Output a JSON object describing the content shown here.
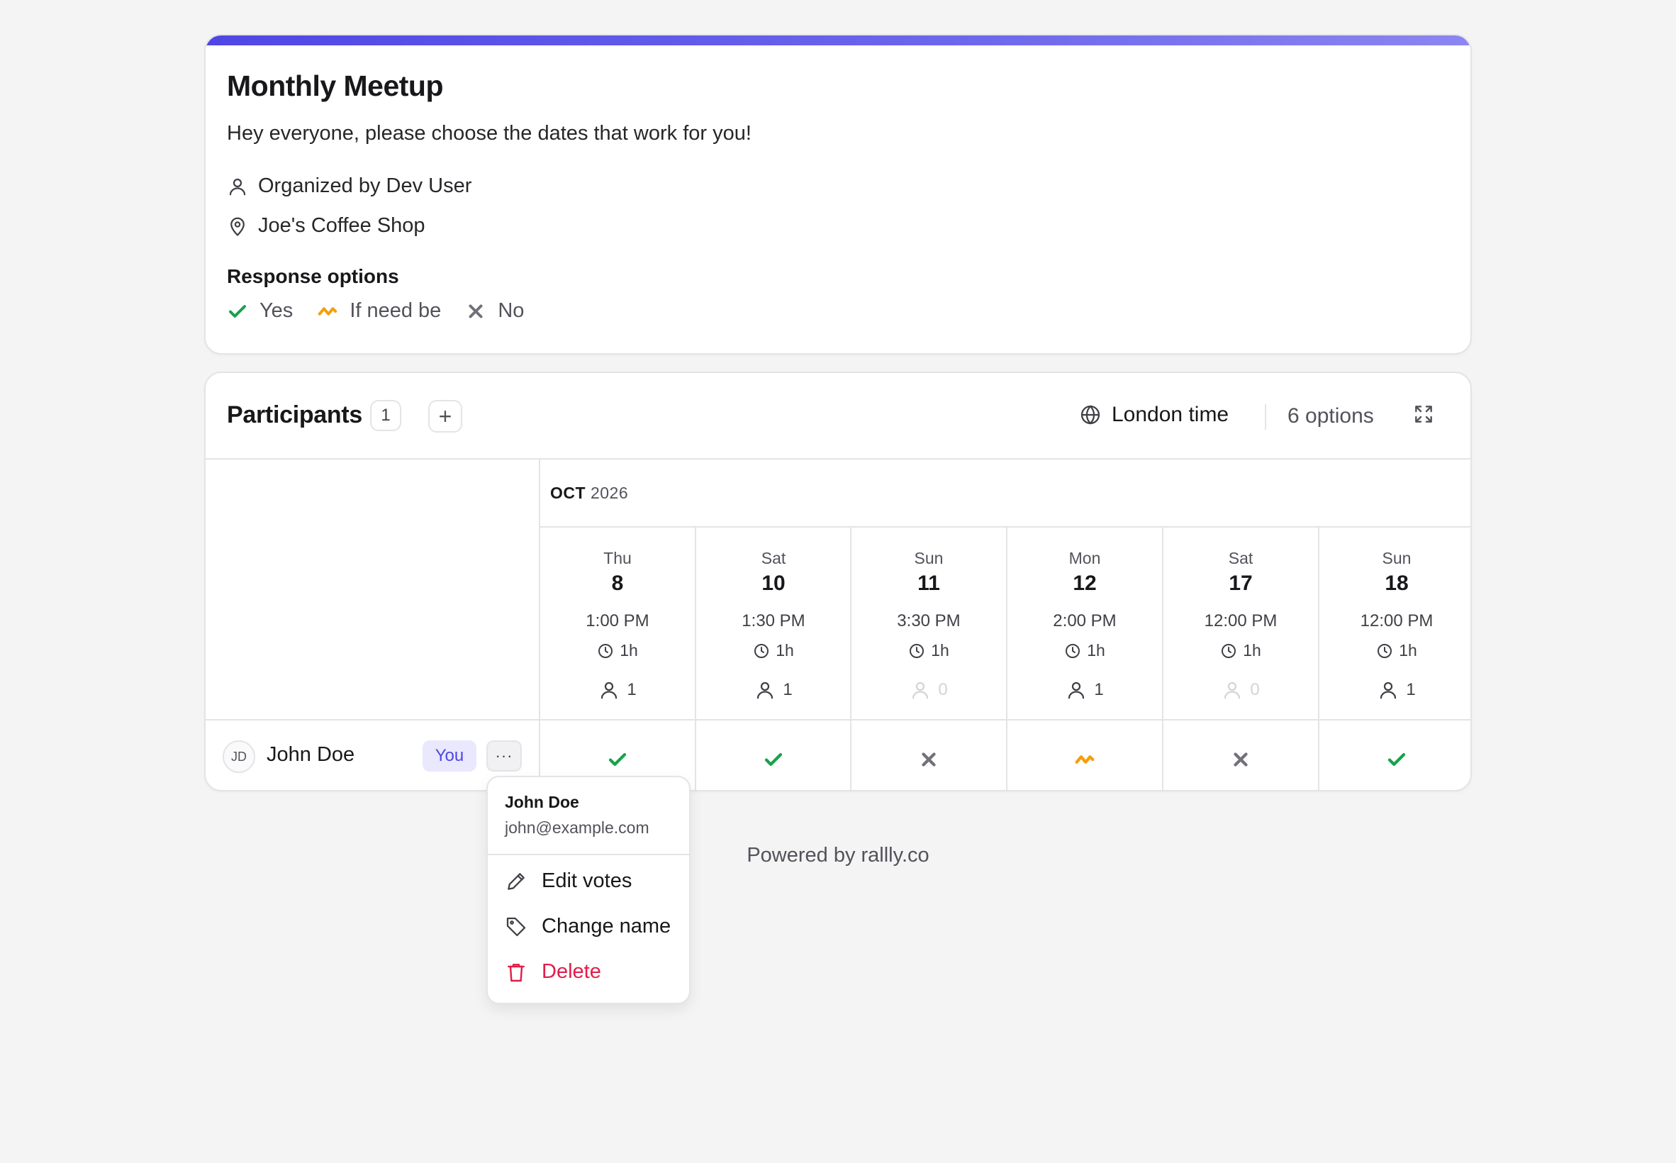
{
  "poll": {
    "title": "Monthly Meetup",
    "description": "Hey everyone, please choose the dates that work for you!",
    "organizer": "Organized by Dev User",
    "location": "Joe's Coffee Shop",
    "response_options_title": "Response options",
    "response_options": {
      "yes": "Yes",
      "ifneedbe": "If need be",
      "no": "No"
    }
  },
  "participants": {
    "title": "Participants",
    "count": "1",
    "add_label": "+",
    "timezone": "London time",
    "options_count": "6 options",
    "month": "OCT",
    "year": "2026",
    "columns": [
      {
        "dow": "Thu",
        "day": "8",
        "time": "1:00 PM",
        "duration": "1h",
        "count": "1"
      },
      {
        "dow": "Sat",
        "day": "10",
        "time": "1:30 PM",
        "duration": "1h",
        "count": "1"
      },
      {
        "dow": "Sun",
        "day": "11",
        "time": "3:30 PM",
        "duration": "1h",
        "count": "0"
      },
      {
        "dow": "Mon",
        "day": "12",
        "time": "2:00 PM",
        "duration": "1h",
        "count": "1"
      },
      {
        "dow": "Sat",
        "day": "17",
        "time": "12:00 PM",
        "duration": "1h",
        "count": "0"
      },
      {
        "dow": "Sun",
        "day": "18",
        "time": "12:00 PM",
        "duration": "1h",
        "count": "1"
      }
    ],
    "rows": [
      {
        "initials": "JD",
        "name": "John Doe",
        "badge": "You",
        "more": "···",
        "votes": [
          "yes",
          "yes",
          "no",
          "ifneedbe",
          "no",
          "yes"
        ]
      }
    ]
  },
  "menu": {
    "name": "John Doe",
    "email": "john@example.com",
    "edit_votes": "Edit votes",
    "change_name": "Change name",
    "delete": "Delete"
  },
  "footer": {
    "text": "Powered by rallly.co"
  },
  "colors": {
    "accent": "#4f46e5",
    "yes": "#16a34a",
    "ifneedbe": "#f59e0b",
    "no": "#71717a",
    "danger": "#e11d48"
  }
}
